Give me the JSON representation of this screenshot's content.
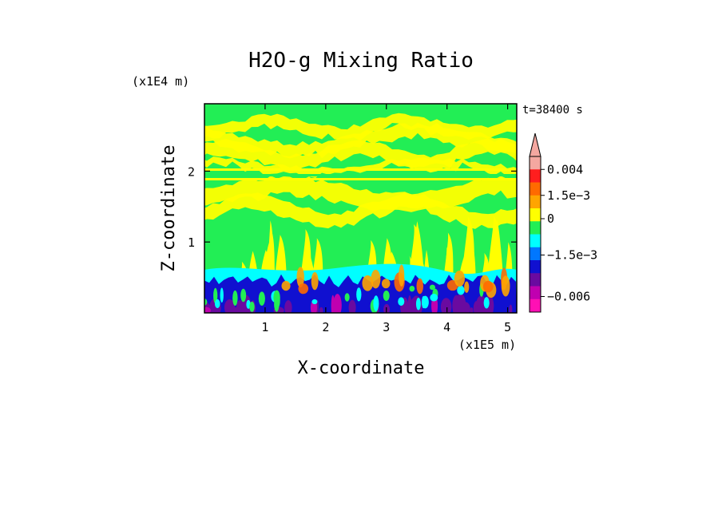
{
  "chart_data": {
    "type": "heatmap",
    "title": "H2O-g Mixing Ratio",
    "xlabel": "X-coordinate",
    "ylabel": "Z-coordinate",
    "x_unit": "(x1E5 m)",
    "y_unit": "(x1E4 m)",
    "time_label": "t=38400 s",
    "xlim": [
      0,
      5.15
    ],
    "ylim": [
      0,
      2.95
    ],
    "x_ticks": [
      {
        "value": 1,
        "label": "1"
      },
      {
        "value": 2,
        "label": "2"
      },
      {
        "value": 3,
        "label": "3"
      },
      {
        "value": 4,
        "label": "4"
      },
      {
        "value": 5,
        "label": "5"
      }
    ],
    "y_ticks": [
      {
        "value": 1,
        "label": "1"
      },
      {
        "value": 2,
        "label": "2"
      }
    ],
    "colorbar": {
      "levels": [
        {
          "color": "#f4a7a0"
        },
        {
          "color": "#ff1e1e"
        },
        {
          "color": "#ff6a00"
        },
        {
          "color": "#ffa500"
        },
        {
          "color": "#ffff00"
        },
        {
          "color": "#22ee55"
        },
        {
          "color": "#00ffff"
        },
        {
          "color": "#0077ff"
        },
        {
          "color": "#1010d0"
        },
        {
          "color": "#6a0aa0"
        },
        {
          "color": "#c000b0"
        },
        {
          "color": "#ff10b4"
        }
      ],
      "labels": [
        {
          "text": "0.004",
          "at_level": 1
        },
        {
          "text": "1.5e-3",
          "at_level": 3
        },
        {
          "text": "0",
          "at_level": 4.8
        },
        {
          "text": "-1.5e-3",
          "at_level": 7.6
        },
        {
          "text": "-0.006",
          "at_level": 10.8
        }
      ]
    },
    "field_description_colors": {
      "upper": "#22ee55",
      "bands": "#ffff00",
      "low": "#00ffff",
      "bottom": "#1010d0",
      "floor": "#6a0aa0",
      "plume": "#ffa500"
    }
  }
}
